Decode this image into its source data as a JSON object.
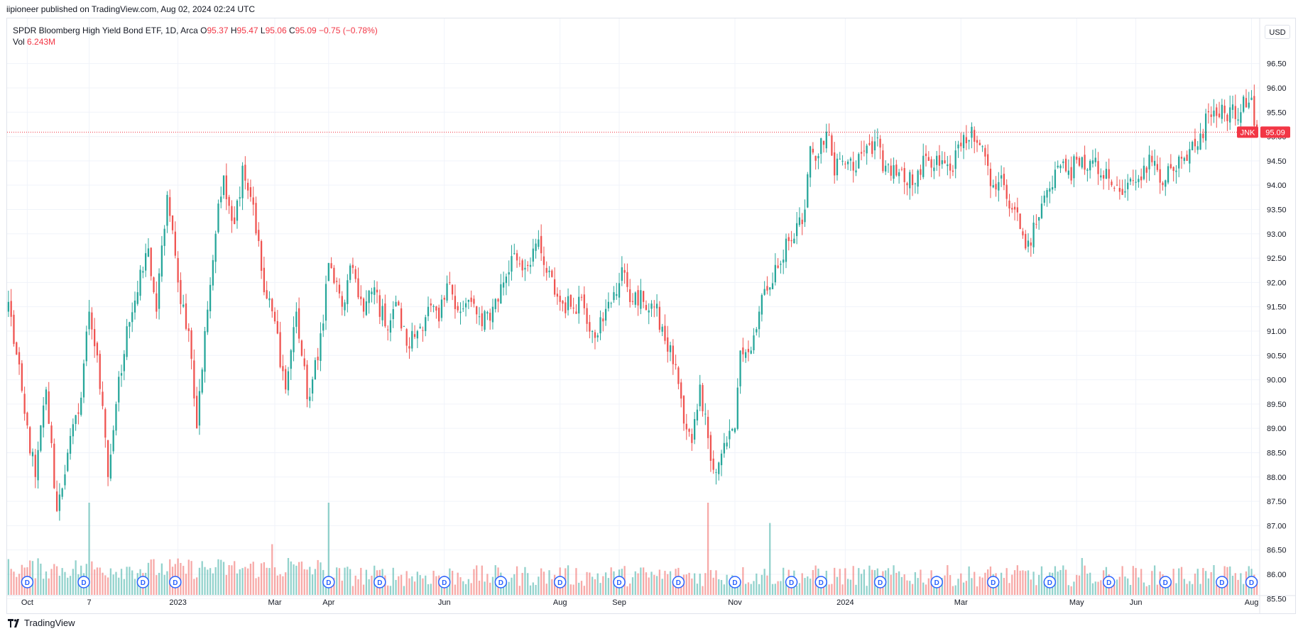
{
  "header": {
    "published_line": "iipioneer published on TradingView.com, Aug 02, 2024 02:24 UTC"
  },
  "legend": {
    "name": "SPDR Bloomberg High Yield Bond ETF, 1D, Arca",
    "o_label": "O",
    "o_value": "95.37",
    "h_label": "H",
    "h_value": "95.47",
    "l_label": "L",
    "l_value": "95.06",
    "c_label": "C",
    "c_value": "95.09",
    "change": "−0.75 (−0.78%)",
    "vol_label": "Vol",
    "vol_value": "6.243M"
  },
  "currency": "USD",
  "price_tag": {
    "ticker": "JNK",
    "value": "95.09"
  },
  "footer": {
    "brand": "TradingView"
  },
  "colors": {
    "up": "#26a69a",
    "down": "#ef5350",
    "last_line": "#f23645",
    "dividend": "#2962ff",
    "grid": "#f0f3fa"
  },
  "chart_data": {
    "type": "candlestick",
    "symbol": "JNK",
    "interval": "1D",
    "y_ticks": [
      "96.50",
      "96.00",
      "95.50",
      "95.00",
      "94.50",
      "94.00",
      "93.50",
      "93.00",
      "92.50",
      "92.00",
      "91.50",
      "91.00",
      "90.50",
      "90.00",
      "89.50",
      "89.00",
      "88.50",
      "88.00",
      "87.50",
      "87.00",
      "86.50",
      "86.00",
      "85.50"
    ],
    "ylim": [
      85.3,
      96.8
    ],
    "x_labels": [
      {
        "label": "Oct",
        "idx": 7
      },
      {
        "label": "7",
        "idx": 30
      },
      {
        "label": "2023",
        "idx": 63
      },
      {
        "label": "Mar",
        "idx": 99
      },
      {
        "label": "Apr",
        "idx": 119
      },
      {
        "label": "Jun",
        "idx": 162
      },
      {
        "label": "Aug",
        "idx": 205
      },
      {
        "label": "Sep",
        "idx": 227
      },
      {
        "label": "Nov",
        "idx": 270
      },
      {
        "label": "2024",
        "idx": 311
      },
      {
        "label": "Mar",
        "idx": 354
      },
      {
        "label": "May",
        "idx": 397
      },
      {
        "label": "Jun",
        "idx": 419
      },
      {
        "label": "Aug",
        "idx": 462
      }
    ],
    "total_bars": 465,
    "last_price": 95.09,
    "dividend_markers": [
      7,
      28,
      50,
      62,
      119,
      138,
      162,
      183,
      205,
      227,
      249,
      270,
      291,
      302,
      324,
      345,
      366,
      387,
      409,
      430,
      451,
      462
    ],
    "dividend_label": "D",
    "anchors": [
      [
        0,
        91.6
      ],
      [
        6,
        89.3
      ],
      [
        10,
        88.0
      ],
      [
        14,
        89.8
      ],
      [
        18,
        87.3
      ],
      [
        22,
        88.5
      ],
      [
        26,
        89.3
      ],
      [
        30,
        91.4
      ],
      [
        33,
        90.5
      ],
      [
        37,
        88.0
      ],
      [
        40,
        89.5
      ],
      [
        44,
        91.1
      ],
      [
        48,
        91.8
      ],
      [
        52,
        92.7
      ],
      [
        55,
        91.4
      ],
      [
        59,
        93.8
      ],
      [
        63,
        92.0
      ],
      [
        67,
        91.0
      ],
      [
        70,
        89.0
      ],
      [
        73,
        91.0
      ],
      [
        77,
        93.0
      ],
      [
        80,
        94.2
      ],
      [
        84,
        93.2
      ],
      [
        87,
        94.4
      ],
      [
        91,
        93.6
      ],
      [
        95,
        91.8
      ],
      [
        99,
        91.2
      ],
      [
        103,
        89.8
      ],
      [
        107,
        91.4
      ],
      [
        111,
        89.6
      ],
      [
        115,
        90.4
      ],
      [
        119,
        92.4
      ],
      [
        124,
        91.5
      ],
      [
        128,
        92.3
      ],
      [
        132,
        91.4
      ],
      [
        136,
        91.9
      ],
      [
        140,
        91.1
      ],
      [
        144,
        91.6
      ],
      [
        148,
        90.7
      ],
      [
        152,
        91.0
      ],
      [
        156,
        91.5
      ],
      [
        160,
        91.2
      ],
      [
        164,
        92.0
      ],
      [
        168,
        91.4
      ],
      [
        172,
        91.6
      ],
      [
        176,
        91.1
      ],
      [
        180,
        91.5
      ],
      [
        184,
        92.0
      ],
      [
        188,
        92.6
      ],
      [
        192,
        92.3
      ],
      [
        196,
        92.8
      ],
      [
        200,
        92.2
      ],
      [
        205,
        91.6
      ],
      [
        209,
        91.5
      ],
      [
        213,
        91.7
      ],
      [
        217,
        91.0
      ],
      [
        221,
        91.2
      ],
      [
        225,
        91.8
      ],
      [
        229,
        92.2
      ],
      [
        232,
        91.6
      ],
      [
        236,
        91.6
      ],
      [
        240,
        91.5
      ],
      [
        244,
        90.8
      ],
      [
        248,
        90.3
      ],
      [
        251,
        89.1
      ],
      [
        254,
        88.7
      ],
      [
        257,
        89.9
      ],
      [
        260,
        88.8
      ],
      [
        263,
        88.1
      ],
      [
        266,
        88.7
      ],
      [
        270,
        89.0
      ],
      [
        272,
        90.6
      ],
      [
        276,
        90.6
      ],
      [
        279,
        91.4
      ],
      [
        283,
        91.9
      ],
      [
        286,
        92.3
      ],
      [
        289,
        92.9
      ],
      [
        292,
        92.9
      ],
      [
        295,
        93.2
      ],
      [
        298,
        94.8
      ],
      [
        301,
        94.6
      ],
      [
        304,
        95.1
      ],
      [
        307,
        94.2
      ],
      [
        310,
        94.5
      ],
      [
        314,
        94.3
      ],
      [
        318,
        94.7
      ],
      [
        322,
        94.9
      ],
      [
        326,
        94.4
      ],
      [
        330,
        94.2
      ],
      [
        334,
        94.0
      ],
      [
        338,
        94.3
      ],
      [
        342,
        94.5
      ],
      [
        346,
        94.4
      ],
      [
        350,
        94.3
      ],
      [
        354,
        94.8
      ],
      [
        358,
        95.2
      ],
      [
        362,
        94.8
      ],
      [
        366,
        94.0
      ],
      [
        370,
        94.0
      ],
      [
        374,
        93.5
      ],
      [
        378,
        92.7
      ],
      [
        382,
        93.2
      ],
      [
        386,
        93.9
      ],
      [
        390,
        94.4
      ],
      [
        394,
        94.3
      ],
      [
        398,
        94.4
      ],
      [
        402,
        94.5
      ],
      [
        406,
        94.2
      ],
      [
        410,
        94.0
      ],
      [
        414,
        93.8
      ],
      [
        418,
        94.1
      ],
      [
        422,
        94.4
      ],
      [
        426,
        94.5
      ],
      [
        430,
        94.1
      ],
      [
        434,
        94.3
      ],
      [
        438,
        94.5
      ],
      [
        442,
        94.8
      ],
      [
        446,
        95.5
      ],
      [
        450,
        95.4
      ],
      [
        454,
        95.6
      ],
      [
        458,
        95.5
      ],
      [
        462,
        95.8
      ],
      [
        464,
        95.09
      ]
    ],
    "volume_spikes": [
      [
        30,
        1.0
      ],
      [
        119,
        1.0
      ],
      [
        260,
        1.0
      ],
      [
        283,
        0.78
      ],
      [
        399,
        0.4
      ],
      [
        98,
        0.55
      ],
      [
        104,
        0.4
      ]
    ]
  }
}
